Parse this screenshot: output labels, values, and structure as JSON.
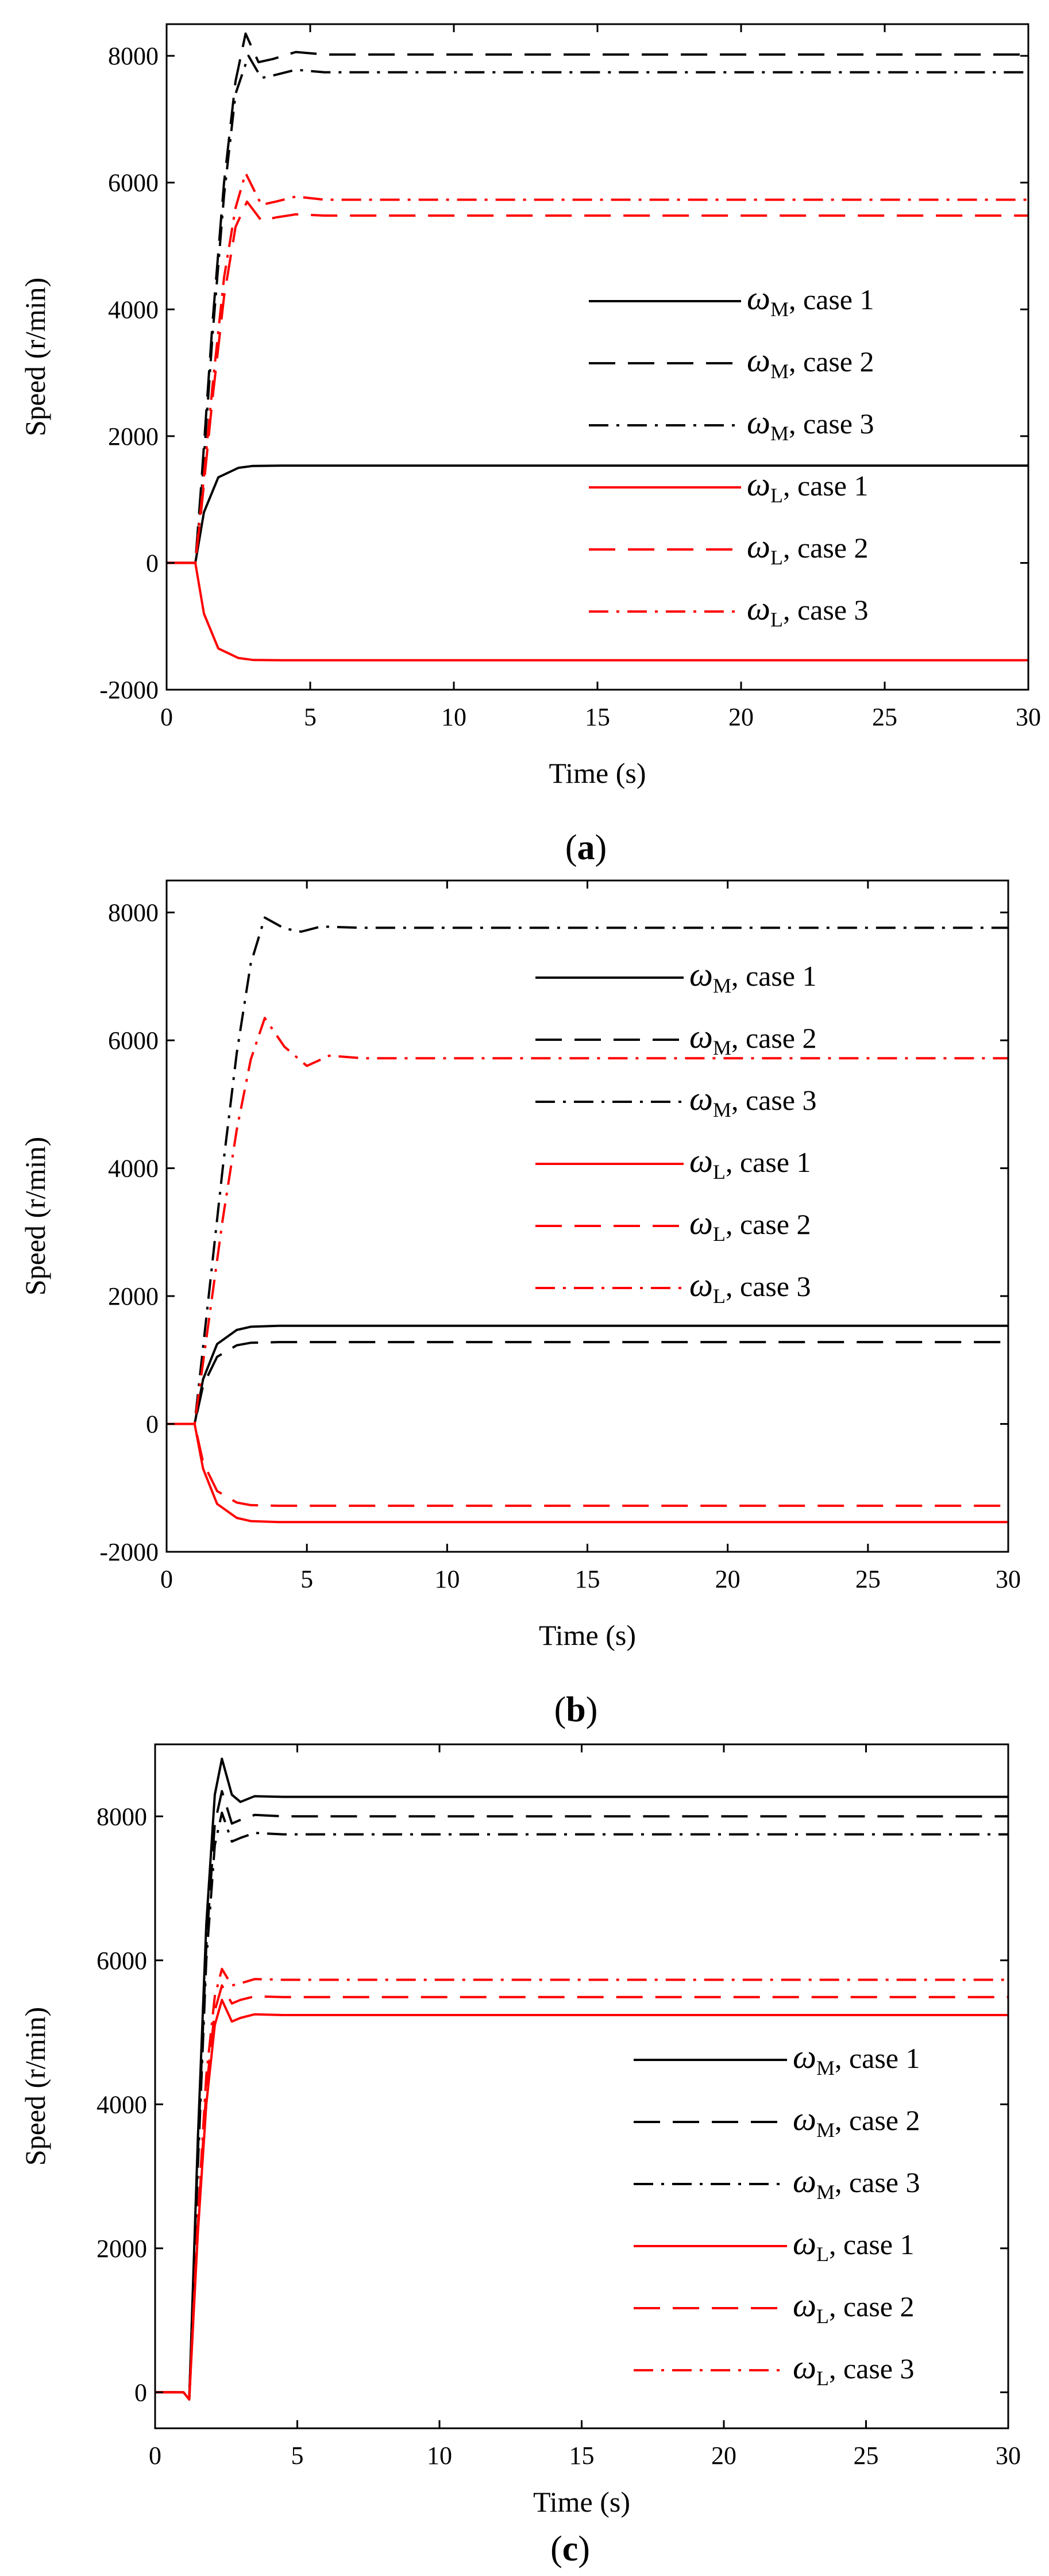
{
  "colors": {
    "black": "#000000",
    "red": "#ff0000"
  },
  "chart_data": [
    {
      "type": "line",
      "panel_label": "a",
      "xlabel": "Time (s)",
      "ylabel": "Speed (r/min)",
      "xlim": [
        0,
        30
      ],
      "ylim": [
        -2000,
        8500
      ],
      "xticks": [
        0,
        5,
        10,
        15,
        20,
        25,
        30
      ],
      "yticks": [
        -2000,
        0,
        2000,
        4000,
        6000,
        8000
      ],
      "legend_position": "right",
      "series": [
        {
          "name": "ωM, case 1",
          "symbol": "ω",
          "sub": "M",
          "suffix": ", case 1",
          "color": "#000000",
          "style": "solid",
          "points": [
            [
              0,
              0
            ],
            [
              1,
              0
            ],
            [
              1.3,
              800
            ],
            [
              1.8,
              1350
            ],
            [
              2.5,
              1500
            ],
            [
              3,
              1530
            ],
            [
              4,
              1535
            ],
            [
              30,
              1535
            ]
          ]
        },
        {
          "name": "ωM, case 2",
          "symbol": "ω",
          "sub": "M",
          "suffix": ", case 2",
          "color": "#000000",
          "style": "dashed",
          "points": [
            [
              0,
              0
            ],
            [
              1,
              0
            ],
            [
              1.2,
              1200
            ],
            [
              1.6,
              3800
            ],
            [
              2,
              6000
            ],
            [
              2.4,
              7600
            ],
            [
              2.75,
              8350
            ],
            [
              3.2,
              7900
            ],
            [
              3.7,
              7950
            ],
            [
              4.5,
              8060
            ],
            [
              5.5,
              8020
            ],
            [
              30,
              8020
            ]
          ]
        },
        {
          "name": "ωM, case 3",
          "symbol": "ω",
          "sub": "M",
          "suffix": ", case 3",
          "color": "#000000",
          "style": "dashdot",
          "points": [
            [
              0,
              0
            ],
            [
              1,
              0
            ],
            [
              1.2,
              1000
            ],
            [
              1.6,
              3600
            ],
            [
              2,
              5800
            ],
            [
              2.4,
              7400
            ],
            [
              2.85,
              8000
            ],
            [
              3.3,
              7650
            ],
            [
              3.8,
              7700
            ],
            [
              4.5,
              7780
            ],
            [
              5.5,
              7740
            ],
            [
              30,
              7740
            ]
          ]
        },
        {
          "name": "ωL, case 1",
          "symbol": "ω",
          "sub": "L",
          "suffix": ", case 1",
          "color": "#ff0000",
          "style": "solid",
          "points": [
            [
              0,
              0
            ],
            [
              1,
              0
            ],
            [
              1.3,
              -800
            ],
            [
              1.8,
              -1350
            ],
            [
              2.5,
              -1500
            ],
            [
              3,
              -1530
            ],
            [
              4,
              -1535
            ],
            [
              30,
              -1535
            ]
          ]
        },
        {
          "name": "ωL, case 2",
          "symbol": "ω",
          "sub": "L",
          "suffix": ", case 2",
          "color": "#ff0000",
          "style": "dashed",
          "points": [
            [
              0,
              0
            ],
            [
              1,
              0
            ],
            [
              1.2,
              800
            ],
            [
              1.6,
              2600
            ],
            [
              2,
              4200
            ],
            [
              2.4,
              5300
            ],
            [
              2.8,
              5700
            ],
            [
              3.3,
              5400
            ],
            [
              3.8,
              5450
            ],
            [
              4.5,
              5500
            ],
            [
              5.5,
              5480
            ],
            [
              30,
              5480
            ]
          ]
        },
        {
          "name": "ωL, case 3",
          "symbol": "ω",
          "sub": "L",
          "suffix": ", case 3",
          "color": "#ff0000",
          "style": "dashdot",
          "points": [
            [
              0,
              0
            ],
            [
              1,
              0
            ],
            [
              1.2,
              900
            ],
            [
              1.6,
              2800
            ],
            [
              2,
              4500
            ],
            [
              2.4,
              5600
            ],
            [
              2.75,
              6150
            ],
            [
              3.3,
              5650
            ],
            [
              3.8,
              5700
            ],
            [
              4.5,
              5780
            ],
            [
              5.5,
              5730
            ],
            [
              30,
              5730
            ]
          ]
        }
      ]
    },
    {
      "type": "line",
      "panel_label": "b",
      "xlabel": "Time (s)",
      "ylabel": "Speed (r/min)",
      "xlim": [
        0,
        30
      ],
      "ylim": [
        -2000,
        8500
      ],
      "xticks": [
        0,
        5,
        10,
        15,
        20,
        25,
        30
      ],
      "yticks": [
        -2000,
        0,
        2000,
        4000,
        6000,
        8000
      ],
      "legend_position": "right",
      "series": [
        {
          "name": "ωM, case 1",
          "symbol": "ω",
          "sub": "M",
          "suffix": ", case 1",
          "color": "#000000",
          "style": "solid",
          "points": [
            [
              0,
              0
            ],
            [
              1,
              0
            ],
            [
              1.3,
              700
            ],
            [
              1.8,
              1250
            ],
            [
              2.5,
              1470
            ],
            [
              3,
              1520
            ],
            [
              4,
              1535
            ],
            [
              30,
              1535
            ]
          ]
        },
        {
          "name": "ωM, case 2",
          "symbol": "ω",
          "sub": "M",
          "suffix": ", case 2",
          "color": "#000000",
          "style": "dashed",
          "points": [
            [
              0,
              0
            ],
            [
              1,
              0
            ],
            [
              1.3,
              600
            ],
            [
              1.8,
              1050
            ],
            [
              2.5,
              1230
            ],
            [
              3,
              1270
            ],
            [
              4,
              1280
            ],
            [
              30,
              1280
            ]
          ]
        },
        {
          "name": "ωM, case 3",
          "symbol": "ω",
          "sub": "M",
          "suffix": ", case 3",
          "color": "#000000",
          "style": "dashdot",
          "points": [
            [
              0,
              0
            ],
            [
              1,
              0
            ],
            [
              1.5,
              2000
            ],
            [
              2,
              4000
            ],
            [
              2.5,
              5800
            ],
            [
              3,
              7200
            ],
            [
              3.5,
              7920
            ],
            [
              4.2,
              7750
            ],
            [
              4.8,
              7700
            ],
            [
              5.5,
              7780
            ],
            [
              7,
              7760
            ],
            [
              30,
              7760
            ]
          ]
        },
        {
          "name": "ωL, case 1",
          "symbol": "ω",
          "sub": "L",
          "suffix": ", case 1",
          "color": "#ff0000",
          "style": "solid",
          "points": [
            [
              0,
              0
            ],
            [
              1,
              0
            ],
            [
              1.3,
              -700
            ],
            [
              1.8,
              -1250
            ],
            [
              2.5,
              -1470
            ],
            [
              3,
              -1520
            ],
            [
              4,
              -1535
            ],
            [
              30,
              -1535
            ]
          ]
        },
        {
          "name": "ωL, case 2",
          "symbol": "ω",
          "sub": "L",
          "suffix": ", case 2",
          "color": "#ff0000",
          "style": "dashed",
          "points": [
            [
              0,
              0
            ],
            [
              1,
              0
            ],
            [
              1.3,
              -600
            ],
            [
              1.8,
              -1050
            ],
            [
              2.5,
              -1230
            ],
            [
              3,
              -1270
            ],
            [
              4,
              -1280
            ],
            [
              30,
              -1280
            ]
          ]
        },
        {
          "name": "ωL, case 3",
          "symbol": "ω",
          "sub": "L",
          "suffix": ", case 3",
          "color": "#ff0000",
          "style": "dashdot",
          "points": [
            [
              0,
              0
            ],
            [
              1,
              0
            ],
            [
              1.5,
              1600
            ],
            [
              2,
              3200
            ],
            [
              2.5,
              4600
            ],
            [
              3,
              5700
            ],
            [
              3.5,
              6350
            ],
            [
              4.2,
              5900
            ],
            [
              5,
              5600
            ],
            [
              5.8,
              5760
            ],
            [
              7,
              5720
            ],
            [
              30,
              5720
            ]
          ]
        }
      ]
    },
    {
      "type": "line",
      "panel_label": "c",
      "xlabel": "Time (s)",
      "ylabel": "Speed (r/min)",
      "xlim": [
        0,
        30
      ],
      "ylim": [
        -500,
        9000
      ],
      "xticks": [
        0,
        5,
        10,
        15,
        20,
        25,
        30
      ],
      "yticks": [
        0,
        2000,
        4000,
        6000,
        8000
      ],
      "legend_position": "right",
      "series": [
        {
          "name": "ωM, case 1",
          "symbol": "ω",
          "sub": "M",
          "suffix": ", case 1",
          "color": "#000000",
          "style": "solid",
          "points": [
            [
              0,
              0
            ],
            [
              1,
              0
            ],
            [
              1.2,
              -100
            ],
            [
              1.5,
              3500
            ],
            [
              1.8,
              6500
            ],
            [
              2.1,
              8300
            ],
            [
              2.35,
              8800
            ],
            [
              2.7,
              8300
            ],
            [
              3,
              8200
            ],
            [
              3.5,
              8280
            ],
            [
              4.5,
              8270
            ],
            [
              30,
              8270
            ]
          ]
        },
        {
          "name": "ωM, case 2",
          "symbol": "ω",
          "sub": "M",
          "suffix": ", case 2",
          "color": "#000000",
          "style": "dashed",
          "points": [
            [
              0,
              0
            ],
            [
              1,
              0
            ],
            [
              1.2,
              -100
            ],
            [
              1.5,
              3300
            ],
            [
              1.8,
              6200
            ],
            [
              2.1,
              7900
            ],
            [
              2.35,
              8350
            ],
            [
              2.7,
              7900
            ],
            [
              3,
              7950
            ],
            [
              3.5,
              8020
            ],
            [
              4.5,
              8000
            ],
            [
              30,
              8000
            ]
          ]
        },
        {
          "name": "ωM, case 3",
          "symbol": "ω",
          "sub": "M",
          "suffix": ", case 3",
          "color": "#000000",
          "style": "dashdot",
          "points": [
            [
              0,
              0
            ],
            [
              1,
              0
            ],
            [
              1.2,
              -100
            ],
            [
              1.5,
              3100
            ],
            [
              1.8,
              6000
            ],
            [
              2.1,
              7600
            ],
            [
              2.35,
              8050
            ],
            [
              2.7,
              7650
            ],
            [
              3,
              7700
            ],
            [
              3.5,
              7770
            ],
            [
              4.5,
              7750
            ],
            [
              30,
              7750
            ]
          ]
        },
        {
          "name": "ωL, case 1",
          "symbol": "ω",
          "sub": "L",
          "suffix": ", case 1",
          "color": "#ff0000",
          "style": "solid",
          "points": [
            [
              0,
              0
            ],
            [
              1,
              0
            ],
            [
              1.2,
              -100
            ],
            [
              1.5,
              2200
            ],
            [
              1.8,
              4000
            ],
            [
              2.1,
              5100
            ],
            [
              2.35,
              5450
            ],
            [
              2.7,
              5150
            ],
            [
              3,
              5200
            ],
            [
              3.5,
              5250
            ],
            [
              4.5,
              5240
            ],
            [
              30,
              5240
            ]
          ]
        },
        {
          "name": "ωL, case 2",
          "symbol": "ω",
          "sub": "L",
          "suffix": ", case 2",
          "color": "#ff0000",
          "style": "dashed",
          "points": [
            [
              0,
              0
            ],
            [
              1,
              0
            ],
            [
              1.2,
              -100
            ],
            [
              1.5,
              2300
            ],
            [
              1.8,
              4200
            ],
            [
              2.1,
              5300
            ],
            [
              2.35,
              5650
            ],
            [
              2.7,
              5400
            ],
            [
              3,
              5450
            ],
            [
              3.5,
              5500
            ],
            [
              4.5,
              5490
            ],
            [
              30,
              5490
            ]
          ]
        },
        {
          "name": "ωL, case 3",
          "symbol": "ω",
          "sub": "L",
          "suffix": ", case 3",
          "color": "#ff0000",
          "style": "dashdot",
          "points": [
            [
              0,
              0
            ],
            [
              1,
              0
            ],
            [
              1.2,
              -100
            ],
            [
              1.5,
              2400
            ],
            [
              1.8,
              4400
            ],
            [
              2.1,
              5500
            ],
            [
              2.35,
              5880
            ],
            [
              2.7,
              5650
            ],
            [
              3,
              5680
            ],
            [
              3.5,
              5740
            ],
            [
              4.5,
              5730
            ],
            [
              30,
              5730
            ]
          ]
        }
      ]
    }
  ]
}
